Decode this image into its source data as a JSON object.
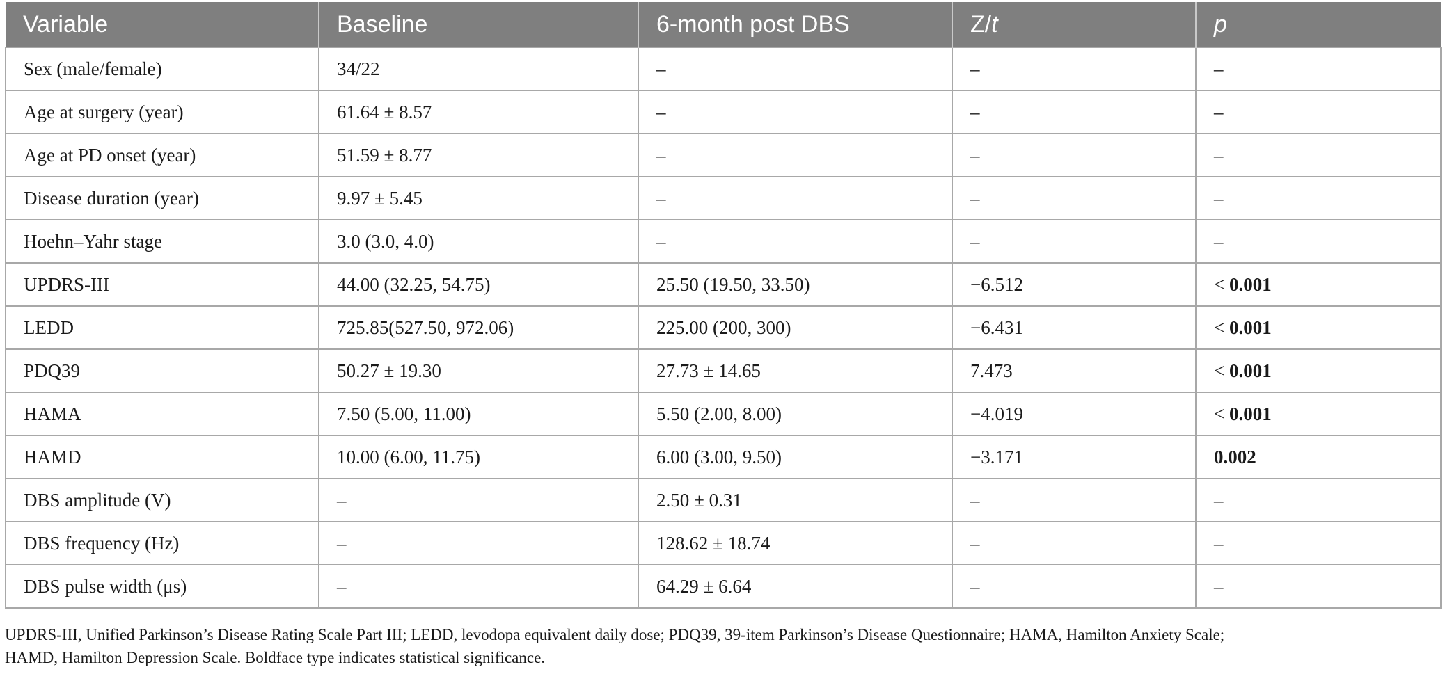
{
  "table": {
    "headers": {
      "variable": "Variable",
      "baseline": "Baseline",
      "post": "6-month post DBS",
      "zt_z": "Z/",
      "zt_t": "t",
      "p": "p"
    },
    "rows": [
      {
        "variable": "Sex (male/female)",
        "baseline": "34/22",
        "post": "–",
        "zt": "–",
        "p_prefix": "",
        "p": "–"
      },
      {
        "variable": "Age at surgery (year)",
        "baseline": "61.64 ± 8.57",
        "post": "–",
        "zt": "–",
        "p_prefix": "",
        "p": "–"
      },
      {
        "variable": "Age at PD onset (year)",
        "baseline": "51.59 ± 8.77",
        "post": "–",
        "zt": "–",
        "p_prefix": "",
        "p": "–"
      },
      {
        "variable": "Disease duration (year)",
        "baseline": "9.97 ± 5.45",
        "post": "–",
        "zt": "–",
        "p_prefix": "",
        "p": "–"
      },
      {
        "variable": "Hoehn–Yahr stage",
        "baseline": "3.0 (3.0, 4.0)",
        "post": "–",
        "zt": "–",
        "p_prefix": "",
        "p": "–"
      },
      {
        "variable": "UPDRS-III",
        "baseline": "44.00 (32.25, 54.75)",
        "post": "25.50 (19.50, 33.50)",
        "zt": "−6.512",
        "p_prefix": "< ",
        "p": "0.001"
      },
      {
        "variable": "LEDD",
        "baseline": "725.85(527.50, 972.06)",
        "post": "225.00 (200, 300)",
        "zt": "−6.431",
        "p_prefix": "< ",
        "p": "0.001"
      },
      {
        "variable": "PDQ39",
        "baseline": "50.27 ± 19.30",
        "post": "27.73 ± 14.65",
        "zt": "7.473",
        "p_prefix": "< ",
        "p": "0.001"
      },
      {
        "variable": "HAMA",
        "baseline": "7.50 (5.00, 11.00)",
        "post": "5.50 (2.00, 8.00)",
        "zt": "−4.019",
        "p_prefix": "< ",
        "p": "0.001"
      },
      {
        "variable": "HAMD",
        "baseline": "10.00 (6.00, 11.75)",
        "post": "6.00 (3.00, 9.50)",
        "zt": "−3.171",
        "p_prefix": "",
        "p": "0.002"
      },
      {
        "variable": "DBS amplitude (V)",
        "baseline": "–",
        "post": "2.50 ± 0.31",
        "zt": "–",
        "p_prefix": "",
        "p": "–"
      },
      {
        "variable": "DBS frequency (Hz)",
        "baseline": "–",
        "post": "128.62 ± 18.74",
        "zt": "–",
        "p_prefix": "",
        "p": "–"
      },
      {
        "variable": "DBS pulse width (μs)",
        "baseline": "–",
        "post": "64.29 ± 6.64",
        "zt": "–",
        "p_prefix": "",
        "p": "–"
      }
    ]
  },
  "footnote": {
    "line1": "UPDRS-III, Unified Parkinson’s Disease Rating Scale Part III; LEDD, levodopa equivalent daily dose; PDQ39, 39-item Parkinson’s Disease Questionnaire; HAMA, Hamilton Anxiety Scale;",
    "line2": "HAMD, Hamilton Depression Scale. Boldface type indicates statistical significance."
  },
  "colors": {
    "header_bg": "#7f7f7f",
    "header_text": "#ffffff",
    "grid": "#a8a8a8"
  }
}
